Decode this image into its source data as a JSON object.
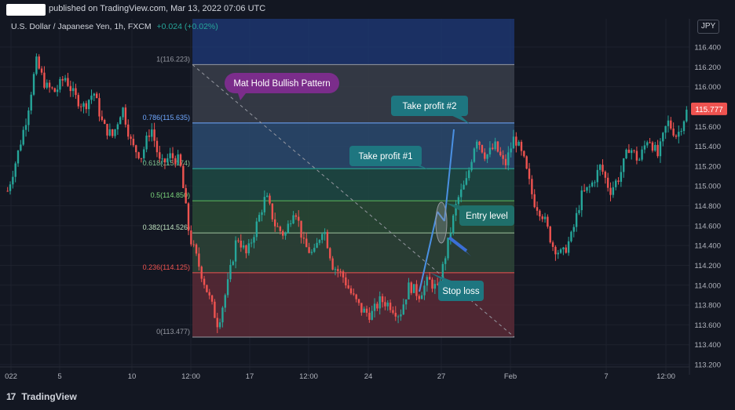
{
  "header": {
    "published_text": "published on TradingView.com, Mar 13, 2022 07:06 UTC"
  },
  "symbol": {
    "name": "U.S. Dollar / Japanese Yen, 1h, FXCM",
    "change": "+0.024 (+0.02%)"
  },
  "currency_badge": "JPY",
  "footer": {
    "logo_mark": "17",
    "logo_text": "TradingView"
  },
  "chart_data": {
    "type": "candlestick",
    "instrument": "USDJPY",
    "timeframe": "1h",
    "y_axis": {
      "ticks": [
        "116.400",
        "116.200",
        "116.000",
        "115.800",
        "115.600",
        "115.400",
        "115.200",
        "115.000",
        "114.800",
        "114.600",
        "114.400",
        "114.200",
        "114.000",
        "113.800",
        "113.600",
        "113.400",
        "113.200"
      ],
      "ylim": [
        113.2,
        116.6
      ],
      "last_price": "115.777"
    },
    "x_axis": {
      "ticks": [
        "022",
        "5",
        "10",
        "12:00",
        "17",
        "12:00",
        "24",
        "27",
        "Feb",
        "7",
        "12:00"
      ]
    },
    "price_path": [
      114.95,
      115.3,
      115.7,
      116.25,
      116.0,
      115.95,
      116.1,
      115.9,
      115.8,
      115.95,
      115.6,
      115.5,
      115.8,
      115.4,
      115.3,
      115.6,
      115.2,
      115.3,
      115.25,
      114.5,
      114.2,
      113.9,
      113.6,
      114.0,
      114.5,
      114.3,
      114.6,
      114.9,
      114.6,
      114.5,
      114.8,
      114.4,
      114.3,
      114.6,
      114.2,
      114.1,
      113.9,
      113.75,
      113.7,
      113.85,
      113.8,
      113.7,
      114.0,
      113.9,
      114.05,
      113.95,
      114.4,
      114.85,
      115.05,
      115.5,
      115.3,
      115.4,
      115.2,
      115.5,
      115.25,
      114.85,
      114.7,
      114.4,
      114.3,
      114.5,
      114.9,
      115.0,
      115.2,
      114.95,
      115.1,
      115.4,
      115.25,
      115.5,
      115.3,
      115.65,
      115.5,
      115.75
    ],
    "fibonacci": [
      {
        "label": "1(116.223)",
        "value": 116.223
      },
      {
        "label": "0.786(115.635)",
        "value": 115.635
      },
      {
        "label": "0.618(115.174)",
        "value": 115.174
      },
      {
        "label": "0.5(114.850)",
        "value": 114.85
      },
      {
        "label": "0.382(114.526)",
        "value": 114.526
      },
      {
        "label": "0.236(114.125)",
        "value": 114.125
      },
      {
        "label": "0(113.477)",
        "value": 113.477
      }
    ],
    "annotations": [
      {
        "text": "Mat Hold Bullish Pattern"
      },
      {
        "text": "Take profit #2"
      },
      {
        "text": "Take profit #1"
      },
      {
        "text": "Entry level"
      },
      {
        "text": "Stop loss"
      }
    ],
    "colors": {
      "up": "#26a69a",
      "down": "#ef5350",
      "annotation_purple": "#7b2d8b",
      "annotation_teal": "#1e7680",
      "trend_blue": "#4a90e2",
      "price_tag": "#ef5350"
    }
  }
}
